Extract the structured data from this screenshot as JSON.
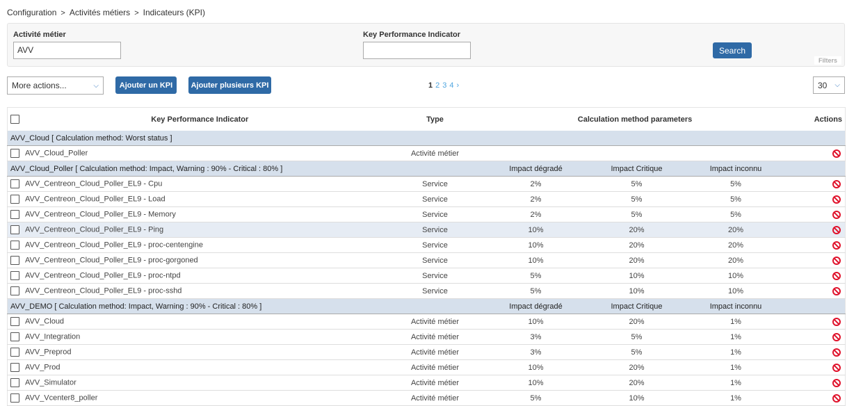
{
  "breadcrumb": [
    "Configuration",
    "Activités métiers",
    "Indicateurs (KPI)"
  ],
  "filters": {
    "activity_label": "Activité métier",
    "activity_value": "AVV",
    "kpi_label": "Key Performance Indicator",
    "kpi_value": "",
    "search": "Search",
    "tag": "Filters"
  },
  "toolbar": {
    "more_actions": "More actions...",
    "add_kpi": "Ajouter un KPI",
    "add_many": "Ajouter plusieurs KPI",
    "pages": [
      "1",
      "2",
      "3",
      "4"
    ],
    "next": "›",
    "per_page": "30"
  },
  "table": {
    "headers": {
      "kpi": "Key Performance Indicator",
      "type": "Type",
      "params": "Calculation method parameters",
      "actions": "Actions"
    },
    "groups": [
      {
        "label": "AVV_Cloud [ Calculation method: Worst status ]",
        "sub": [],
        "rows": [
          {
            "name": "AVV_Cloud_Poller",
            "type": "Activité métier",
            "vals": [
              "",
              "",
              ""
            ]
          }
        ]
      },
      {
        "label": "AVV_Cloud_Poller [ Calculation method: Impact, Warning : 90% - Critical : 80% ]",
        "sub": [
          "Impact dégradé",
          "Impact Critique",
          "Impact inconnu"
        ],
        "rows": [
          {
            "name": "AVV_Centreon_Cloud_Poller_EL9 - Cpu",
            "type": "Service",
            "vals": [
              "2%",
              "5%",
              "5%"
            ]
          },
          {
            "name": "AVV_Centreon_Cloud_Poller_EL9 - Load",
            "type": "Service",
            "vals": [
              "2%",
              "5%",
              "5%"
            ]
          },
          {
            "name": "AVV_Centreon_Cloud_Poller_EL9 - Memory",
            "type": "Service",
            "vals": [
              "2%",
              "5%",
              "5%"
            ]
          },
          {
            "name": "AVV_Centreon_Cloud_Poller_EL9 - Ping",
            "type": "Service",
            "vals": [
              "10%",
              "20%",
              "20%"
            ],
            "highlight": true
          },
          {
            "name": "AVV_Centreon_Cloud_Poller_EL9 - proc-centengine",
            "type": "Service",
            "vals": [
              "10%",
              "20%",
              "20%"
            ]
          },
          {
            "name": "AVV_Centreon_Cloud_Poller_EL9 - proc-gorgoned",
            "type": "Service",
            "vals": [
              "10%",
              "20%",
              "20%"
            ]
          },
          {
            "name": "AVV_Centreon_Cloud_Poller_EL9 - proc-ntpd",
            "type": "Service",
            "vals": [
              "5%",
              "10%",
              "10%"
            ]
          },
          {
            "name": "AVV_Centreon_Cloud_Poller_EL9 - proc-sshd",
            "type": "Service",
            "vals": [
              "5%",
              "10%",
              "10%"
            ]
          }
        ]
      },
      {
        "label": "AVV_DEMO [ Calculation method: Impact, Warning : 90% - Critical : 80% ]",
        "sub": [
          "Impact dégradé",
          "Impact Critique",
          "Impact inconnu"
        ],
        "rows": [
          {
            "name": "AVV_Cloud",
            "type": "Activité métier",
            "vals": [
              "10%",
              "20%",
              "1%"
            ]
          },
          {
            "name": "AVV_Integration",
            "type": "Activité métier",
            "vals": [
              "3%",
              "5%",
              "1%"
            ]
          },
          {
            "name": "AVV_Preprod",
            "type": "Activité métier",
            "vals": [
              "3%",
              "5%",
              "1%"
            ]
          },
          {
            "name": "AVV_Prod",
            "type": "Activité métier",
            "vals": [
              "10%",
              "20%",
              "1%"
            ]
          },
          {
            "name": "AVV_Simulator",
            "type": "Activité métier",
            "vals": [
              "10%",
              "20%",
              "1%"
            ]
          },
          {
            "name": "AVV_Vcenter8_poller",
            "type": "Activité métier",
            "vals": [
              "5%",
              "10%",
              "1%"
            ]
          }
        ]
      }
    ]
  }
}
